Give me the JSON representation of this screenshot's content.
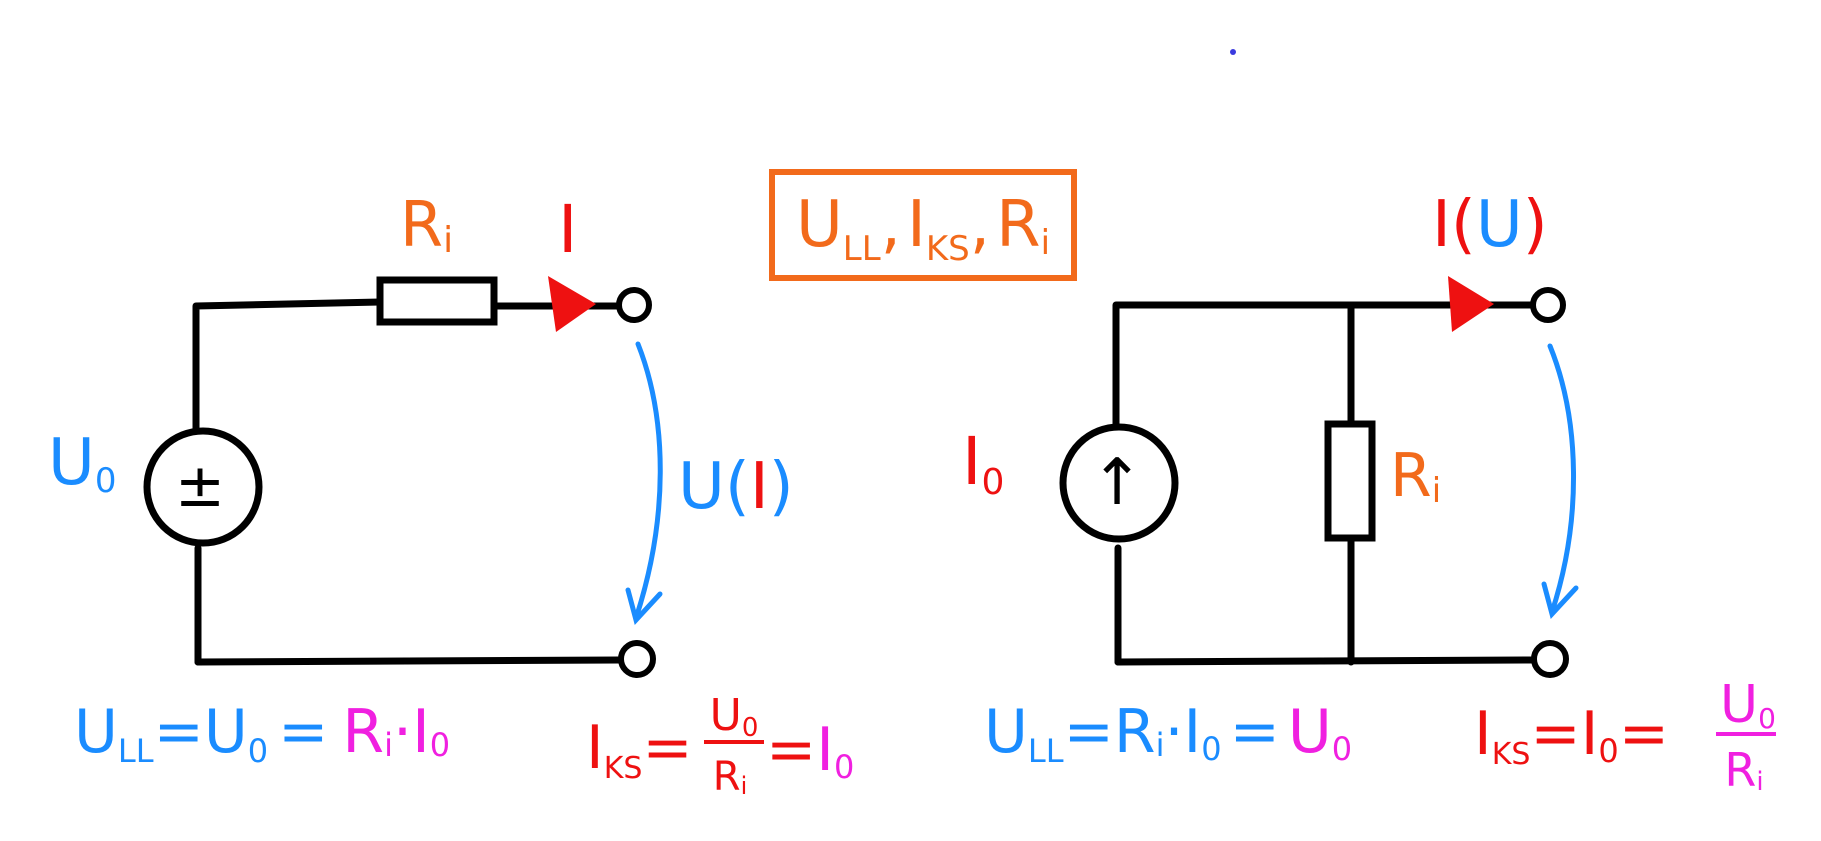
{
  "colors": {
    "wire": "#000000",
    "orange": "#f26a1b",
    "red": "#ee1111",
    "blue": "#1a8cff",
    "magenta": "#f020e0"
  },
  "header_box": {
    "u": "U",
    "u_sub": "LL",
    "sep1": ",",
    "i": "I",
    "i_sub": "KS",
    "sep2": ",",
    "r": "R",
    "r_sub": "i"
  },
  "left_circuit": {
    "resistor_label": {
      "main": "R",
      "sub": "i"
    },
    "current_label": "I",
    "source_label": {
      "main": "U",
      "sub": "0"
    },
    "source_symbol": "±",
    "voltage_label": {
      "u": "U",
      "open": "(",
      "i": "I",
      "close": ")"
    },
    "eq_ull": {
      "u": "U",
      "u_sub": "LL",
      "eq1": "=",
      "u0": "U",
      "u0_sub": "0",
      "eq2": "=",
      "r": "R",
      "r_sub": "i",
      "dot": "·",
      "i": "I",
      "i_sub": "0"
    },
    "eq_iks": {
      "i": "I",
      "i_sub": "KS",
      "eq1": "=",
      "num": "U",
      "num_sub": "0",
      "den": "R",
      "den_sub": "i",
      "eq2": "=",
      "i0": "I",
      "i0_sub": "0"
    }
  },
  "right_circuit": {
    "source_label": {
      "main": "I",
      "sub": "0"
    },
    "source_symbol": "↑",
    "resistor_label": {
      "main": "R",
      "sub": "i"
    },
    "current_label": {
      "i": "I",
      "open": "(",
      "u": "U",
      "close": ")"
    },
    "eq_ull": {
      "u": "U",
      "u_sub": "LL",
      "eq1": "=",
      "r": "R",
      "r_sub": "i",
      "dot": "·",
      "i": "I",
      "i_sub": "0",
      "eq2": "=",
      "u0": "U",
      "u0_sub": "0"
    },
    "eq_iks": {
      "i": "I",
      "i_sub": "KS",
      "eq1": "=",
      "i0": "I",
      "i0_sub": "0",
      "eq2": "=",
      "num": "U",
      "num_sub": "0",
      "den": "R",
      "den_sub": "i"
    }
  }
}
